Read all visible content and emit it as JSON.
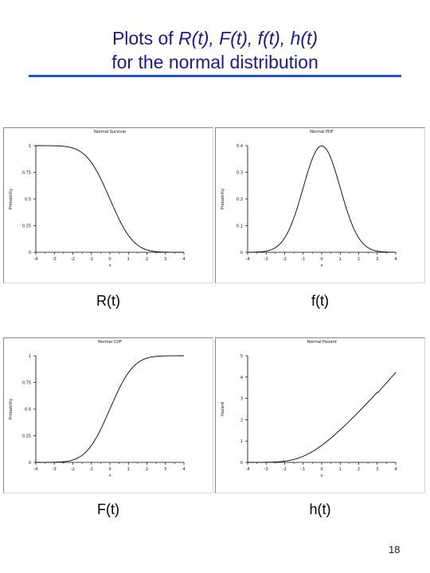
{
  "slide": {
    "title_prefix": "Plots of ",
    "title_functions": "R(t), F(t), f(t), h(t)",
    "title_line2": "for the normal distribution",
    "page_number": "18"
  },
  "chart_data": [
    {
      "type": "line",
      "panel": "top-left",
      "caption": "R(t)",
      "title": "Normal Survival",
      "xlabel": "x",
      "ylabel": "Probability",
      "xlim": [
        -4,
        4
      ],
      "ylim": [
        0,
        1
      ],
      "xticks": [
        "-4",
        "-3",
        "-2",
        "-1",
        "0",
        "1",
        "2",
        "3",
        "4"
      ],
      "yticks": [
        {
          "v": 0,
          "label": "0"
        },
        {
          "v": 0.25,
          "label": "0.25"
        },
        {
          "v": 0.5,
          "label": "0.5"
        },
        {
          "v": 0.75,
          "label": "0.75"
        },
        {
          "v": 1,
          "label": "1"
        }
      ],
      "curve": "survival",
      "grid": false
    },
    {
      "type": "line",
      "panel": "top-right",
      "caption": "f(t)",
      "title": "Normal PDF",
      "xlabel": "x",
      "ylabel": "Probability",
      "xlim": [
        -4,
        4
      ],
      "ylim": [
        0,
        0.4
      ],
      "xticks": [
        "-4",
        "-3",
        "-2",
        "-1",
        "0",
        "1",
        "2",
        "3",
        "4"
      ],
      "yticks": [
        {
          "v": 0,
          "label": "0"
        },
        {
          "v": 0.1,
          "label": "0.1"
        },
        {
          "v": 0.2,
          "label": "0.2"
        },
        {
          "v": 0.3,
          "label": "0.3"
        },
        {
          "v": 0.4,
          "label": "0.4"
        }
      ],
      "curve": "pdf",
      "grid": false
    },
    {
      "type": "line",
      "panel": "bottom-left",
      "caption": "F(t)",
      "title": "Normal CDF",
      "xlabel": "x",
      "ylabel": "Probability",
      "xlim": [
        -4,
        4
      ],
      "ylim": [
        0,
        1
      ],
      "xticks": [
        "-4",
        "-3",
        "-2",
        "-1",
        "0",
        "1",
        "2",
        "3",
        "4"
      ],
      "yticks": [
        {
          "v": 0,
          "label": "0"
        },
        {
          "v": 0.25,
          "label": "0.25"
        },
        {
          "v": 0.5,
          "label": "0.5"
        },
        {
          "v": 0.75,
          "label": "0.75"
        },
        {
          "v": 1,
          "label": "1"
        }
      ],
      "curve": "cdf",
      "grid": false
    },
    {
      "type": "line",
      "panel": "bottom-right",
      "caption": "h(t)",
      "title": "Normal Hazard",
      "xlabel": "x",
      "ylabel": "Hazard",
      "xlim": [
        -4,
        4
      ],
      "ylim": [
        0,
        5
      ],
      "xticks": [
        "-4",
        "-3",
        "-2",
        "-1",
        "0",
        "1",
        "2",
        "3",
        "4"
      ],
      "yticks": [
        {
          "v": 0,
          "label": "0"
        },
        {
          "v": 1,
          "label": "1"
        },
        {
          "v": 2,
          "label": "2"
        },
        {
          "v": 3,
          "label": "3"
        },
        {
          "v": 4,
          "label": "4"
        },
        {
          "v": 5,
          "label": "5"
        }
      ],
      "curve": "hazard",
      "grid": false
    }
  ]
}
